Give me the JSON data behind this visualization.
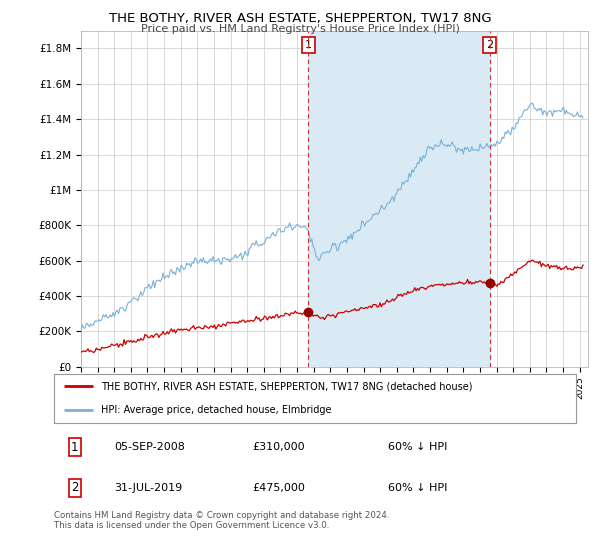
{
  "title": "THE BOTHY, RIVER ASH ESTATE, SHEPPERTON, TW17 8NG",
  "subtitle": "Price paid vs. HM Land Registry's House Price Index (HPI)",
  "ylabel_ticks": [
    "£0",
    "£200K",
    "£400K",
    "£600K",
    "£800K",
    "£1M",
    "£1.2M",
    "£1.4M",
    "£1.6M",
    "£1.8M"
  ],
  "ytick_values": [
    0,
    200000,
    400000,
    600000,
    800000,
    1000000,
    1200000,
    1400000,
    1600000,
    1800000
  ],
  "ylim": [
    0,
    1900000
  ],
  "xlim_start": 1995.0,
  "xlim_end": 2025.5,
  "sale1_x": 2008.68,
  "sale1_y": 310000,
  "sale1_label": "1",
  "sale2_x": 2019.58,
  "sale2_y": 475000,
  "sale2_label": "2",
  "hpi_color": "#7ab0d8",
  "hpi_fill_color": "#daeaf5",
  "price_color": "#cc0000",
  "sale_marker_color": "#990000",
  "vline_color": "#cc3333",
  "legend_line1": "THE BOTHY, RIVER ASH ESTATE, SHEPPERTON, TW17 8NG (detached house)",
  "legend_line2": "HPI: Average price, detached house, Elmbridge",
  "table_row1": [
    "1",
    "05-SEP-2008",
    "£310,000",
    "60% ↓ HPI"
  ],
  "table_row2": [
    "2",
    "31-JUL-2019",
    "£475,000",
    "60% ↓ HPI"
  ],
  "footnote": "Contains HM Land Registry data © Crown copyright and database right 2024.\nThis data is licensed under the Open Government Licence v3.0.",
  "background_color": "#ffffff",
  "grid_color": "#cccccc"
}
